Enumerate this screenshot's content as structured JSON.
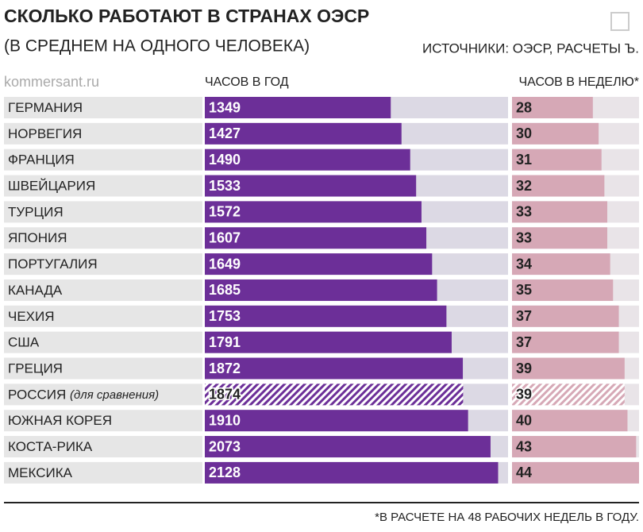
{
  "chart_data": {
    "type": "bar",
    "title": "СКОЛЬКО РАБОТАЮТ В СТРАНАХ ОЭСР",
    "subtitle": "(В СРЕДНЕМ НА ОДНОГО ЧЕЛОВЕКА)",
    "source": "ИСТОЧНИКИ: ОЭСР, РАСЧЕТЫ Ъ.",
    "watermark": "kommersant.ru",
    "footnote": "*В РАСЧЕТЕ НА 48 РАБОЧИХ НЕДЕЛЬ В ГОДУ.",
    "categories": [
      "ГЕРМАНИЯ",
      "НОРВЕГИЯ",
      "ФРАНЦИЯ",
      "ШВЕЙЦАРИЯ",
      "ТУРЦИЯ",
      "ЯПОНИЯ",
      "ПОРТУГАЛИЯ",
      "КАНАДА",
      "ЧЕХИЯ",
      "США",
      "ГРЕЦИЯ",
      "РОССИЯ",
      "ЮЖНАЯ КОРЕЯ",
      "КОСТА-РИКА",
      "МЕКСИКА"
    ],
    "highlight": {
      "index": 11,
      "note": "(для сравнения)"
    },
    "series": [
      {
        "name": "ЧАСОВ В ГОД",
        "color": "#6c2f98",
        "background": "#dcd9e4",
        "xlim": [
          0,
          2200
        ],
        "values": [
          1349,
          1427,
          1490,
          1533,
          1572,
          1607,
          1649,
          1685,
          1753,
          1791,
          1872,
          1874,
          1910,
          2073,
          2128
        ]
      },
      {
        "name": "ЧАСОВ В НЕДЕЛЮ*",
        "color": "#d6a8b6",
        "background": "#e9e4e8",
        "xlim": [
          0,
          44
        ],
        "values": [
          28,
          30,
          31,
          32,
          33,
          33,
          34,
          35,
          37,
          37,
          39,
          39,
          40,
          43,
          44
        ]
      }
    ]
  }
}
